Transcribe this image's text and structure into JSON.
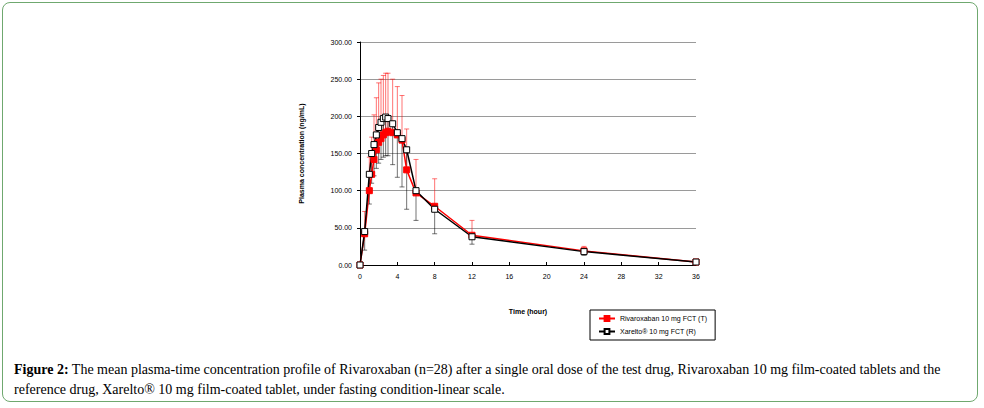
{
  "chart_data": {
    "type": "line",
    "caption": {
      "label": "Figure 2:",
      "text": "The mean plasma-time concentration profile of Rivaroxaban (n=28) after a single oral dose of the test drug, Rivaroxaban 10 mg film-coated tablets and the reference drug, Xarelto® 10 mg film-coated tablet, under fasting condition-linear scale."
    },
    "x_label": "Time (hour)",
    "y_label": "Plasma concentration (ng/mL)",
    "x": [
      0,
      0.5,
      1,
      1.25,
      1.5,
      1.75,
      2,
      2.25,
      2.5,
      2.75,
      3,
      3.5,
      4,
      4.5,
      5,
      6,
      8,
      12,
      24,
      36
    ],
    "series": [
      {
        "name": "Rivaroxaban 10 mg FCT (T)",
        "color": "#ff0000",
        "marker": "square",
        "line_style": "solid",
        "values": [
          0,
          42,
          100,
          122,
          142,
          155,
          165,
          170,
          175,
          178,
          180,
          178,
          175,
          168,
          128,
          97,
          79,
          40,
          19,
          4
        ],
        "error_plus": [
          0,
          30,
          45,
          50,
          60,
          70,
          80,
          80,
          80,
          80,
          78,
          72,
          65,
          60,
          55,
          45,
          37,
          20,
          6,
          3
        ]
      },
      {
        "name": "Xarelto® 10 mg FCT (R)",
        "color": "#000000",
        "marker": "emptySquare",
        "line_style": "solid",
        "values": [
          0,
          45,
          122,
          150,
          162,
          175,
          185,
          192,
          197,
          199,
          197,
          190,
          178,
          170,
          155,
          100,
          75,
          38,
          18,
          4
        ],
        "error_minus": [
          0,
          25,
          40,
          40,
          42,
          45,
          48,
          50,
          52,
          52,
          50,
          55,
          60,
          65,
          80,
          40,
          33,
          10,
          5,
          2
        ]
      }
    ],
    "xlim": [
      0,
      36
    ],
    "xticks": [
      0,
      4,
      8,
      12,
      16,
      20,
      24,
      28,
      32,
      36
    ],
    "ylim": [
      0,
      300
    ],
    "yticks": [
      {
        "value": 0,
        "label": "0.00"
      },
      {
        "value": 50,
        "label": "50.00"
      },
      {
        "value": 100,
        "label": "100.00"
      },
      {
        "value": 150,
        "label": "150.00"
      },
      {
        "value": 200,
        "label": "200.00"
      },
      {
        "value": 250,
        "label": "250.00"
      },
      {
        "value": 300,
        "label": "300.00"
      }
    ],
    "grid": true,
    "legend": "bottom-right"
  }
}
